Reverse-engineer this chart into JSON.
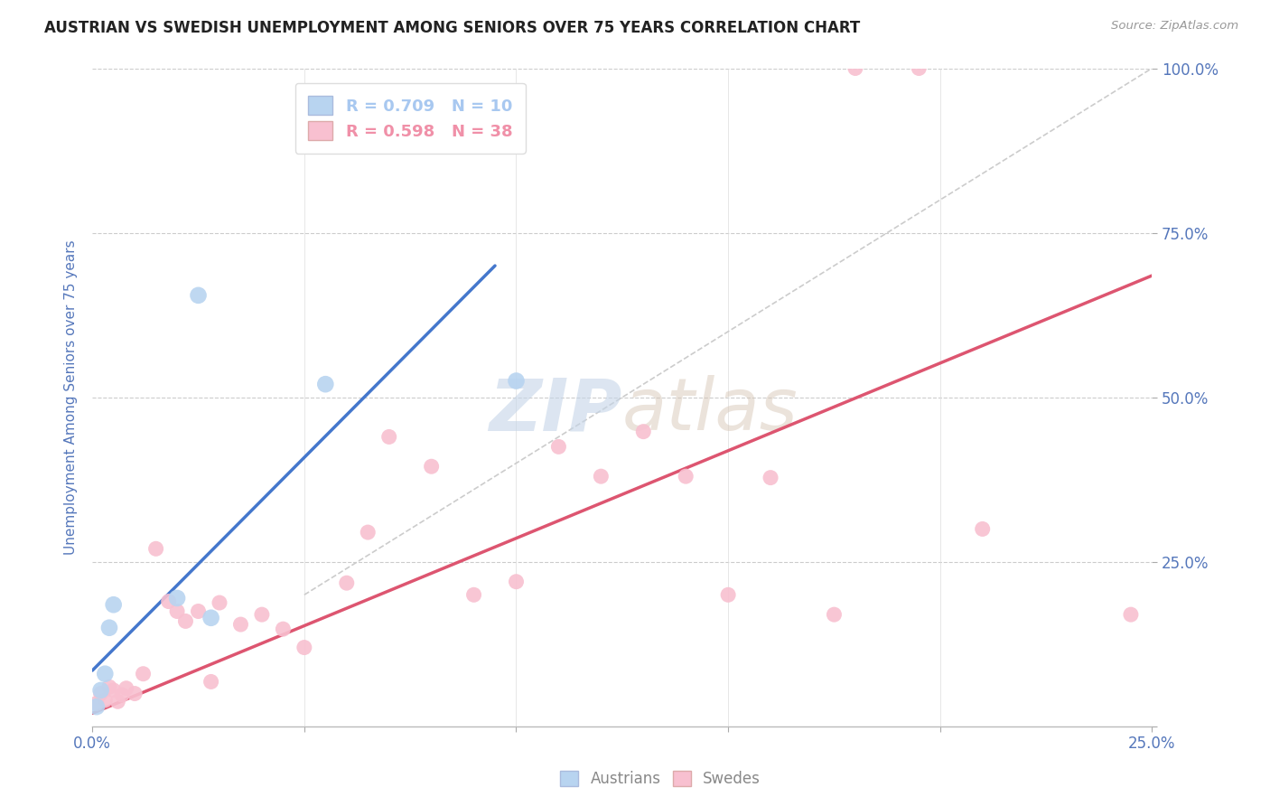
{
  "title": "AUSTRIAN VS SWEDISH UNEMPLOYMENT AMONG SENIORS OVER 75 YEARS CORRELATION CHART",
  "source": "Source: ZipAtlas.com",
  "ylabel": "Unemployment Among Seniors over 75 years",
  "xlim": [
    0.0,
    0.25
  ],
  "ylim": [
    0.0,
    1.0
  ],
  "xticks": [
    0.0,
    0.05,
    0.1,
    0.15,
    0.2,
    0.25
  ],
  "yticks": [
    0.0,
    0.25,
    0.5,
    0.75,
    1.0
  ],
  "right_yticklabels": [
    "",
    "25.0%",
    "50.0%",
    "75.0%",
    "100.0%"
  ],
  "legend_entries": [
    {
      "label": "R = 0.709   N = 10",
      "color": "#a8c8f0"
    },
    {
      "label": "R = 0.598   N = 38",
      "color": "#f090a8"
    }
  ],
  "background_color": "#ffffff",
  "grid_color": "#cccccc",
  "tick_color": "#5577bb",
  "watermark_zip": "ZIP",
  "watermark_atlas": "atlas",
  "austrians_x": [
    0.001,
    0.002,
    0.003,
    0.004,
    0.005,
    0.02,
    0.025,
    0.028,
    0.055,
    0.1
  ],
  "austrians_y": [
    0.03,
    0.055,
    0.08,
    0.15,
    0.185,
    0.195,
    0.655,
    0.165,
    0.52,
    0.525
  ],
  "austrians_color": "#b8d4f0",
  "austrians_marker_size": 180,
  "swedes_x": [
    0.001,
    0.002,
    0.003,
    0.004,
    0.005,
    0.006,
    0.007,
    0.008,
    0.01,
    0.012,
    0.015,
    0.018,
    0.02,
    0.022,
    0.025,
    0.028,
    0.03,
    0.035,
    0.04,
    0.045,
    0.05,
    0.06,
    0.065,
    0.07,
    0.08,
    0.09,
    0.1,
    0.11,
    0.12,
    0.13,
    0.14,
    0.15,
    0.16,
    0.175,
    0.18,
    0.195,
    0.21,
    0.245
  ],
  "swedes_y": [
    0.035,
    0.05,
    0.04,
    0.06,
    0.055,
    0.038,
    0.048,
    0.058,
    0.05,
    0.08,
    0.27,
    0.19,
    0.175,
    0.16,
    0.175,
    0.068,
    0.188,
    0.155,
    0.17,
    0.148,
    0.12,
    0.218,
    0.295,
    0.44,
    0.395,
    0.2,
    0.22,
    0.425,
    0.38,
    0.448,
    0.38,
    0.2,
    0.378,
    0.17,
    1.0,
    1.0,
    0.3,
    0.17
  ],
  "swedes_color": "#f8c0d0",
  "swedes_marker_size": 150,
  "blue_line_x": [
    0.0,
    0.095
  ],
  "blue_line_y": [
    0.085,
    0.7
  ],
  "blue_line_color": "#4477cc",
  "pink_line_x": [
    0.0,
    0.25
  ],
  "pink_line_y": [
    0.02,
    0.685
  ],
  "pink_line_color": "#dd5570",
  "diag_line_x": [
    0.05,
    0.25
  ],
  "diag_line_y": [
    0.2,
    1.0
  ],
  "diag_line_color": "#cccccc"
}
